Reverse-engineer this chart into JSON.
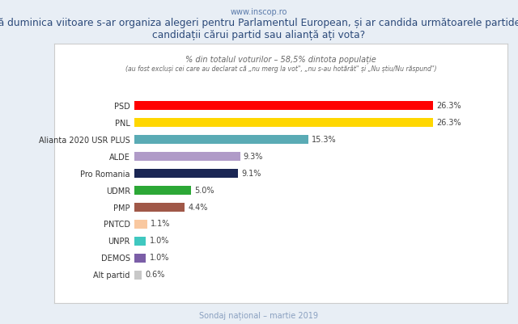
{
  "website": "www.inscop.ro",
  "title_pre": "Dacă duminica viitoare s-ar organiza alegeri pentru ",
  "title_bold": "Parlamentul European",
  "title_post": ", și ar candida următoarele partide, cu",
  "title_line2": "candidații cărui partid sau alianță ați vota?",
  "subtitle1": "% din totalul voturilor – 58,5% dintota populație",
  "subtitle2": "(au fost excluși cei care au declarat că „nu merg la vot\", „nu s-au hotărât\" și „Nu știu/Nu răspund\")",
  "footer": "Sondaj național – martie 2019",
  "parties": [
    "PSD",
    "PNL",
    "Alianta 2020 USR PLUS",
    "ALDE",
    "Pro Romania",
    "UDMR",
    "PMP",
    "PNTCD",
    "UNPR",
    "DEMOS",
    "Alt partid"
  ],
  "values": [
    26.3,
    26.3,
    15.3,
    9.3,
    9.1,
    5.0,
    4.4,
    1.1,
    1.0,
    1.0,
    0.6
  ],
  "colors": [
    "#ff0000",
    "#ffd700",
    "#5aabb5",
    "#b09bc8",
    "#1a2654",
    "#2ca836",
    "#a05848",
    "#f9c8a0",
    "#40c8c0",
    "#7b5ea7",
    "#c8c8c8"
  ],
  "bg_color": "#e8eef5",
  "chart_bg": "#ffffff",
  "title_color": "#2c4a7a",
  "subtitle_color": "#666666",
  "footer_color": "#8aa0c0",
  "website_color": "#5a7aaa",
  "label_color": "#444444",
  "yticklabel_color": "#333333",
  "border_color": "#cccccc"
}
